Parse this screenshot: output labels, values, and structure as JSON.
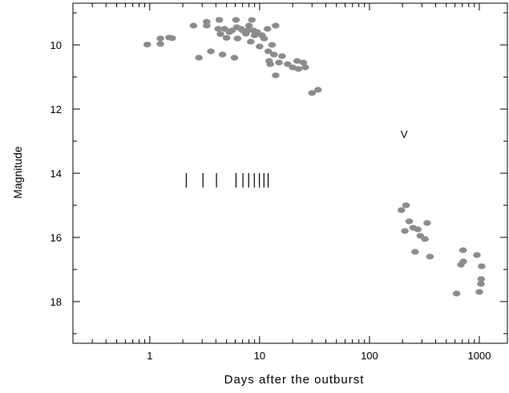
{
  "chart_data": {
    "type": "scatter",
    "xlabel": "Days after the outburst",
    "ylabel": "Magnitude",
    "x_scale": "log",
    "xlim": [
      0.2,
      1800
    ],
    "ylim": [
      8.7,
      19.3
    ],
    "y_inverted": true,
    "x_ticks": [
      1,
      10,
      100,
      1000
    ],
    "x_tick_labels": [
      "1",
      "10",
      "100",
      "1000"
    ],
    "y_ticks": [
      10,
      12,
      14,
      16,
      18
    ],
    "y_tick_labels": [
      "10",
      "12",
      "14",
      "16",
      "18"
    ],
    "grid": false,
    "point_color": "#8c8c8c",
    "series": [
      {
        "points": [
          {
            "x": 0.95,
            "y": 9.99
          },
          {
            "x": 1.25,
            "y": 9.8
          },
          {
            "x": 1.25,
            "y": 9.97
          },
          {
            "x": 1.5,
            "y": 9.77
          },
          {
            "x": 1.6,
            "y": 9.79
          },
          {
            "x": 2.5,
            "y": 9.4
          },
          {
            "x": 2.8,
            "y": 10.4
          },
          {
            "x": 3.3,
            "y": 9.28
          },
          {
            "x": 3.3,
            "y": 9.4
          },
          {
            "x": 3.6,
            "y": 10.2
          },
          {
            "x": 4.2,
            "y": 9.5
          },
          {
            "x": 4.3,
            "y": 9.22
          },
          {
            "x": 4.4,
            "y": 9.66
          },
          {
            "x": 4.6,
            "y": 10.3
          },
          {
            "x": 4.8,
            "y": 9.5
          },
          {
            "x": 5.0,
            "y": 9.78
          },
          {
            "x": 5.3,
            "y": 9.6
          },
          {
            "x": 5.6,
            "y": 9.55
          },
          {
            "x": 5.9,
            "y": 10.4
          },
          {
            "x": 6.1,
            "y": 9.22
          },
          {
            "x": 6.2,
            "y": 9.45
          },
          {
            "x": 6.3,
            "y": 9.8
          },
          {
            "x": 6.8,
            "y": 9.5
          },
          {
            "x": 7.0,
            "y": 9.55
          },
          {
            "x": 7.5,
            "y": 9.65
          },
          {
            "x": 7.8,
            "y": 9.55
          },
          {
            "x": 8.0,
            "y": 9.4
          },
          {
            "x": 8.3,
            "y": 9.9
          },
          {
            "x": 8.5,
            "y": 9.22
          },
          {
            "x": 8.8,
            "y": 9.55
          },
          {
            "x": 9.0,
            "y": 9.7
          },
          {
            "x": 9.5,
            "y": 9.6
          },
          {
            "x": 10.0,
            "y": 10.05
          },
          {
            "x": 10.5,
            "y": 9.7
          },
          {
            "x": 11.0,
            "y": 9.8
          },
          {
            "x": 11.8,
            "y": 9.5
          },
          {
            "x": 12.0,
            "y": 10.2
          },
          {
            "x": 12.2,
            "y": 10.5
          },
          {
            "x": 12.5,
            "y": 10.6
          },
          {
            "x": 13.0,
            "y": 10.0
          },
          {
            "x": 13.5,
            "y": 10.3
          },
          {
            "x": 14.0,
            "y": 9.4
          },
          {
            "x": 14.0,
            "y": 10.95
          },
          {
            "x": 15.0,
            "y": 10.55
          },
          {
            "x": 16.0,
            "y": 10.35
          },
          {
            "x": 18.0,
            "y": 10.6
          },
          {
            "x": 20.0,
            "y": 10.7
          },
          {
            "x": 22.0,
            "y": 10.5
          },
          {
            "x": 22.5,
            "y": 10.75
          },
          {
            "x": 25.0,
            "y": 10.55
          },
          {
            "x": 26.0,
            "y": 10.7
          },
          {
            "x": 30.0,
            "y": 11.5
          },
          {
            "x": 34.0,
            "y": 11.4
          },
          {
            "x": 195.0,
            "y": 15.15
          },
          {
            "x": 215.0,
            "y": 15.0
          },
          {
            "x": 210.0,
            "y": 15.8
          },
          {
            "x": 230.0,
            "y": 15.5
          },
          {
            "x": 250.0,
            "y": 15.7
          },
          {
            "x": 260.0,
            "y": 16.45
          },
          {
            "x": 275.0,
            "y": 15.75
          },
          {
            "x": 290.0,
            "y": 15.95
          },
          {
            "x": 320.0,
            "y": 16.05
          },
          {
            "x": 335.0,
            "y": 15.55
          },
          {
            "x": 355.0,
            "y": 16.6
          },
          {
            "x": 620.0,
            "y": 17.75
          },
          {
            "x": 680.0,
            "y": 16.85
          },
          {
            "x": 710.0,
            "y": 16.4
          },
          {
            "x": 715.0,
            "y": 16.75
          },
          {
            "x": 950.0,
            "y": 16.55
          },
          {
            "x": 1000.0,
            "y": 17.7
          },
          {
            "x": 1050.0,
            "y": 16.9
          },
          {
            "x": 1040.0,
            "y": 17.3
          },
          {
            "x": 1035.0,
            "y": 17.45
          }
        ]
      }
    ],
    "markers": [
      {
        "type": "tick_marks",
        "y": 14.22,
        "x": [
          2.15,
          3.05,
          4.05,
          6.1,
          7.05,
          7.95,
          8.95,
          9.95,
          10.95,
          11.95
        ]
      },
      {
        "type": "text",
        "text": "V",
        "x": 207,
        "y": 12.77
      }
    ]
  }
}
